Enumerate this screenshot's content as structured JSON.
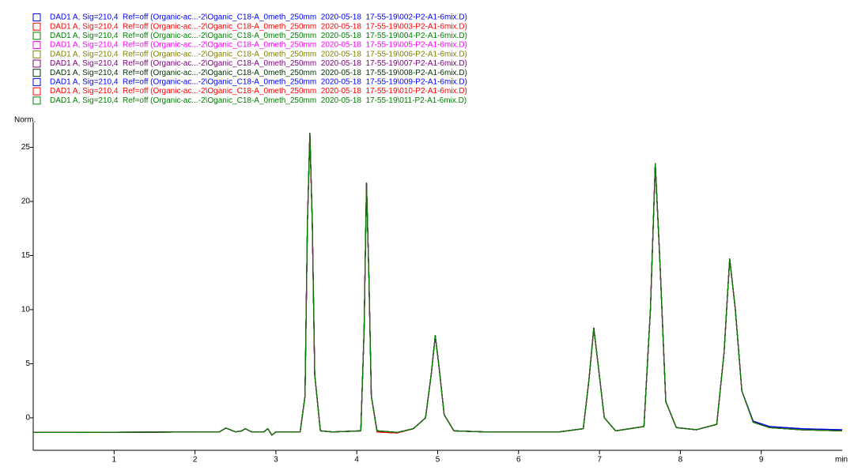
{
  "chart_data": {
    "type": "line",
    "x_label": "min",
    "y_label": "Norm.",
    "xlim": [
      0,
      10
    ],
    "ylim": [
      -3.0,
      27.3
    ],
    "xticks": [
      1,
      2,
      3,
      4,
      5,
      6,
      7,
      8,
      9
    ],
    "yticks": [
      0,
      5,
      10,
      15,
      20,
      25
    ],
    "x": [
      0,
      0.5,
      1,
      1.5,
      2,
      2.3,
      2.38,
      2.42,
      2.5,
      2.58,
      2.62,
      2.7,
      2.85,
      2.9,
      2.95,
      3.0,
      3.3,
      3.36,
      3.39,
      3.42,
      3.45,
      3.48,
      3.55,
      3.7,
      4.05,
      4.09,
      4.12,
      4.15,
      4.18,
      4.25,
      4.5,
      4.7,
      4.85,
      4.92,
      4.97,
      5.02,
      5.08,
      5.2,
      5.6,
      6.0,
      6.5,
      6.8,
      6.87,
      6.93,
      6.99,
      7.06,
      7.2,
      7.55,
      7.63,
      7.69,
      7.75,
      7.82,
      7.95,
      8.2,
      8.45,
      8.54,
      8.61,
      8.68,
      8.76,
      8.9,
      9.1,
      9.5,
      10
    ],
    "series": [
      {
        "name": "DAD1 A, Sig=210,4  Ref=off (Organic-ac...-2\\Oganic_C18-A_0meth_250mm  2020-05-18  17-55-19\\002-P2-A1-6mix.D)",
        "color": "#0000ff",
        "values": [
          -1.35,
          -1.35,
          -1.33,
          -1.32,
          -1.3,
          -1.3,
          -0.95,
          -1.05,
          -1.3,
          -1.2,
          -1.0,
          -1.3,
          -1.3,
          -1.0,
          -1.6,
          -1.3,
          -1.3,
          2.0,
          18,
          26.3,
          18,
          4,
          -1.2,
          -1.3,
          -1.2,
          8,
          21.7,
          13,
          2,
          -1.2,
          -1.35,
          -1.0,
          0.0,
          4.0,
          7.6,
          4.5,
          0.3,
          -1.2,
          -1.3,
          -1.3,
          -1.3,
          -1.0,
          3.5,
          8.3,
          4.5,
          0.0,
          -1.2,
          -0.8,
          10,
          23.5,
          14,
          1.5,
          -0.9,
          -1.1,
          -0.6,
          6,
          14.7,
          10,
          2.5,
          -0.3,
          -0.8,
          -1.0,
          -1.1
        ]
      },
      {
        "name": "DAD1 A, Sig=210,4  Ref=off (Organic-ac...-2\\Oganic_C18-A_0meth_250mm  2020-05-18  17-55-19\\003-P2-A1-6mix.D)",
        "color": "#ff0000",
        "values": [
          -1.35,
          -1.35,
          -1.33,
          -1.32,
          -1.3,
          -1.3,
          -0.95,
          -1.05,
          -1.3,
          -1.2,
          -1.0,
          -1.3,
          -1.3,
          -1.0,
          -1.6,
          -1.3,
          -1.3,
          2.0,
          18,
          26.3,
          18,
          4,
          -1.2,
          -1.3,
          -1.2,
          8,
          21.7,
          13,
          2,
          -1.3,
          -1.4,
          -1.0,
          0.0,
          4.0,
          7.6,
          4.5,
          0.3,
          -1.2,
          -1.3,
          -1.3,
          -1.3,
          -1.0,
          3.5,
          8.3,
          4.5,
          0.0,
          -1.2,
          -0.8,
          10,
          23.5,
          14,
          1.5,
          -0.9,
          -1.1,
          -0.6,
          6,
          14.7,
          10,
          2.5,
          -0.4,
          -0.9,
          -1.1,
          -1.2
        ]
      },
      {
        "name": "DAD1 A, Sig=210,4  Ref=off (Organic-ac...-2\\Oganic_C18-A_0meth_250mm  2020-05-18  17-55-19\\004-P2-A1-6mix.D)",
        "color": "#008000",
        "values": [
          -1.35,
          -1.35,
          -1.33,
          -1.32,
          -1.3,
          -1.3,
          -0.95,
          -1.05,
          -1.3,
          -1.2,
          -1.0,
          -1.3,
          -1.3,
          -1.0,
          -1.6,
          -1.3,
          -1.3,
          2.0,
          18,
          26.3,
          18,
          4,
          -1.2,
          -1.3,
          -1.2,
          8,
          21.7,
          13,
          2,
          -1.2,
          -1.35,
          -1.0,
          0.0,
          4.0,
          7.6,
          4.5,
          0.3,
          -1.2,
          -1.3,
          -1.3,
          -1.3,
          -1.0,
          3.5,
          8.3,
          4.5,
          0.0,
          -1.2,
          -0.8,
          10,
          23.5,
          14,
          1.5,
          -0.9,
          -1.1,
          -0.6,
          6,
          14.7,
          10,
          2.5,
          -0.4,
          -0.9,
          -1.1,
          -1.2
        ]
      },
      {
        "name": "DAD1 A, Sig=210,4  Ref=off (Organic-ac...-2\\Oganic_C18-A_0meth_250mm  2020-05-18  17-55-19\\005-P2-A1-6mix.D)",
        "color": "#ff00ff",
        "values": [
          -1.35,
          -1.35,
          -1.33,
          -1.32,
          -1.3,
          -1.3,
          -0.95,
          -1.05,
          -1.3,
          -1.2,
          -1.0,
          -1.3,
          -1.3,
          -1.0,
          -1.6,
          -1.3,
          -1.3,
          2.0,
          18,
          26.3,
          18,
          4,
          -1.2,
          -1.3,
          -1.2,
          8,
          21.7,
          13,
          2,
          -1.2,
          -1.35,
          -1.0,
          0.0,
          4.0,
          7.6,
          4.5,
          0.3,
          -1.2,
          -1.3,
          -1.3,
          -1.3,
          -1.0,
          3.5,
          8.3,
          4.5,
          0.0,
          -1.2,
          -0.8,
          10,
          23.5,
          14,
          1.5,
          -0.9,
          -1.1,
          -0.6,
          6,
          14.7,
          10,
          2.5,
          -0.4,
          -0.9,
          -1.1,
          -1.2
        ]
      },
      {
        "name": "DAD1 A, Sig=210,4  Ref=off (Organic-ac...-2\\Oganic_C18-A_0meth_250mm  2020-05-18  17-55-19\\006-P2-A1-6mix.D)",
        "color": "#808000",
        "values": [
          -1.35,
          -1.35,
          -1.33,
          -1.32,
          -1.3,
          -1.3,
          -0.95,
          -1.05,
          -1.3,
          -1.2,
          -1.0,
          -1.3,
          -1.3,
          -1.0,
          -1.6,
          -1.3,
          -1.3,
          2.0,
          18,
          26.3,
          18,
          4,
          -1.2,
          -1.3,
          -1.2,
          8,
          21.7,
          13,
          2,
          -1.2,
          -1.35,
          -1.0,
          0.0,
          4.0,
          7.6,
          4.5,
          0.3,
          -1.2,
          -1.3,
          -1.3,
          -1.3,
          -1.0,
          3.5,
          8.3,
          4.5,
          0.0,
          -1.2,
          -0.8,
          10,
          23.5,
          14,
          1.5,
          -0.9,
          -1.1,
          -0.6,
          6,
          14.7,
          10,
          2.5,
          -0.4,
          -0.9,
          -1.1,
          -1.2
        ]
      },
      {
        "name": "DAD1 A, Sig=210,4  Ref=off (Organic-ac...-2\\Oganic_C18-A_0meth_250mm  2020-05-18  17-55-19\\007-P2-A1-6mix.D)",
        "color": "#800080",
        "values": [
          -1.35,
          -1.35,
          -1.33,
          -1.32,
          -1.3,
          -1.3,
          -0.95,
          -1.05,
          -1.3,
          -1.2,
          -1.0,
          -1.3,
          -1.3,
          -1.0,
          -1.6,
          -1.3,
          -1.3,
          2.0,
          18,
          26.3,
          18,
          4,
          -1.2,
          -1.3,
          -1.2,
          8,
          21.7,
          13,
          2,
          -1.2,
          -1.35,
          -1.0,
          0.0,
          4.0,
          7.6,
          4.5,
          0.3,
          -1.2,
          -1.3,
          -1.3,
          -1.3,
          -1.0,
          3.5,
          8.3,
          4.5,
          0.0,
          -1.2,
          -0.8,
          10,
          23.5,
          14,
          1.5,
          -0.9,
          -1.1,
          -0.6,
          6,
          14.7,
          10,
          2.5,
          -0.4,
          -0.9,
          -1.1,
          -1.2
        ]
      },
      {
        "name": "DAD1 A, Sig=210,4  Ref=off (Organic-ac...-2\\Oganic_C18-A_0meth_250mm  2020-05-18  17-55-19\\008-P2-A1-6mix.D)",
        "color": "#003300",
        "values": [
          -1.35,
          -1.35,
          -1.33,
          -1.32,
          -1.3,
          -1.3,
          -0.95,
          -1.05,
          -1.3,
          -1.2,
          -1.0,
          -1.3,
          -1.3,
          -1.0,
          -1.6,
          -1.3,
          -1.3,
          2.0,
          18,
          26.3,
          18,
          4,
          -1.2,
          -1.3,
          -1.2,
          8,
          21.7,
          13,
          2,
          -1.2,
          -1.35,
          -1.0,
          0.0,
          4.0,
          7.6,
          4.5,
          0.3,
          -1.2,
          -1.3,
          -1.3,
          -1.3,
          -1.0,
          3.5,
          8.3,
          4.5,
          0.0,
          -1.2,
          -0.8,
          10,
          23.5,
          14,
          1.5,
          -0.9,
          -1.1,
          -0.6,
          6,
          14.7,
          10,
          2.5,
          -0.4,
          -0.9,
          -1.1,
          -1.2
        ]
      },
      {
        "name": "DAD1 A, Sig=210,4  Ref=off (Organic-ac...-2\\Oganic_C18-A_0meth_250mm  2020-05-18  17-55-19\\009-P2-A1-6mix.D)",
        "color": "#0000ff",
        "values": [
          -1.35,
          -1.35,
          -1.33,
          -1.32,
          -1.3,
          -1.3,
          -0.95,
          -1.05,
          -1.3,
          -1.2,
          -1.0,
          -1.3,
          -1.3,
          -1.0,
          -1.6,
          -1.3,
          -1.3,
          2.0,
          18,
          26.3,
          18,
          4,
          -1.2,
          -1.3,
          -1.2,
          8,
          21.7,
          13,
          2,
          -1.2,
          -1.35,
          -1.0,
          0.0,
          4.0,
          7.6,
          4.5,
          0.3,
          -1.2,
          -1.3,
          -1.3,
          -1.3,
          -1.0,
          3.5,
          8.3,
          4.5,
          0.0,
          -1.2,
          -0.8,
          10,
          23.5,
          14,
          1.5,
          -0.9,
          -1.1,
          -0.6,
          6,
          14.7,
          10,
          2.5,
          -0.3,
          -0.8,
          -1.0,
          -1.1
        ]
      },
      {
        "name": "DAD1 A, Sig=210,4  Ref=off (Organic-ac...-2\\Oganic_C18-A_0meth_250mm  2020-05-18  17-55-19\\010-P2-A1-6mix.D)",
        "color": "#ff0000",
        "values": [
          -1.35,
          -1.35,
          -1.33,
          -1.32,
          -1.3,
          -1.3,
          -0.95,
          -1.05,
          -1.3,
          -1.2,
          -1.0,
          -1.3,
          -1.3,
          -1.0,
          -1.6,
          -1.3,
          -1.3,
          2.0,
          18,
          26.3,
          18,
          4,
          -1.2,
          -1.3,
          -1.2,
          8,
          21.7,
          13,
          2,
          -1.3,
          -1.4,
          -1.0,
          0.0,
          4.0,
          7.6,
          4.5,
          0.3,
          -1.2,
          -1.3,
          -1.3,
          -1.3,
          -1.0,
          3.5,
          8.3,
          4.5,
          0.0,
          -1.2,
          -0.8,
          10,
          23.5,
          14,
          1.5,
          -0.9,
          -1.1,
          -0.6,
          6,
          14.7,
          10,
          2.5,
          -0.4,
          -0.9,
          -1.1,
          -1.2
        ]
      },
      {
        "name": "DAD1 A, Sig=210,4  Ref=off (Organic-ac...-2\\Oganic_C18-A_0meth_250mm  2020-05-18  17-55-19\\011-P2-A1-6mix.D)",
        "color": "#008000",
        "values": [
          -1.35,
          -1.35,
          -1.33,
          -1.32,
          -1.3,
          -1.3,
          -0.95,
          -1.05,
          -1.3,
          -1.2,
          -1.0,
          -1.3,
          -1.3,
          -1.0,
          -1.6,
          -1.3,
          -1.3,
          2.0,
          18,
          26.3,
          18,
          4,
          -1.2,
          -1.3,
          -1.2,
          8,
          21.7,
          13,
          2,
          -1.2,
          -1.35,
          -1.0,
          0.0,
          4.0,
          7.6,
          4.5,
          0.3,
          -1.2,
          -1.3,
          -1.3,
          -1.3,
          -1.0,
          3.5,
          8.3,
          4.5,
          0.0,
          -1.2,
          -0.8,
          10,
          23.5,
          14,
          1.5,
          -0.9,
          -1.1,
          -0.6,
          6,
          14.7,
          10,
          2.5,
          -0.4,
          -0.9,
          -1.1,
          -1.2
        ]
      }
    ]
  }
}
